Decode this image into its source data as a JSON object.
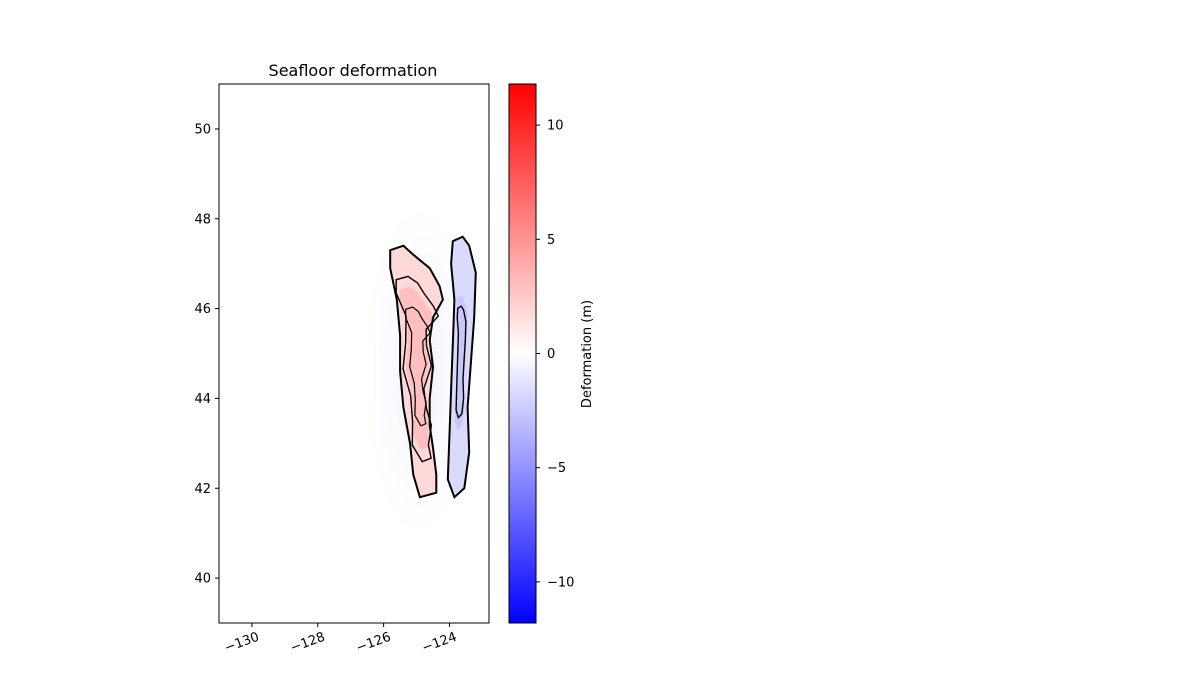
{
  "chart_data": {
    "type": "heatmap",
    "title": "Seafloor deformation",
    "xlabel": "",
    "ylabel": "",
    "xlim": [
      -131,
      -122.8
    ],
    "ylim": [
      39,
      51
    ],
    "x_ticks": [
      -130,
      -128,
      -126,
      -124
    ],
    "x_tick_labels": [
      "−130",
      "−128",
      "−126",
      "−124"
    ],
    "y_ticks": [
      40,
      42,
      44,
      46,
      48,
      50
    ],
    "y_tick_labels": [
      "40",
      "42",
      "44",
      "46",
      "48",
      "50"
    ],
    "colormap": "bwr",
    "colors": {
      "low": "#0000ff",
      "mid": "#ffffff",
      "high": "#ff0000",
      "contour": "#000000"
    },
    "grid": false,
    "colorbar": {
      "label": "Deformation (m)",
      "range": [
        -11.8,
        11.8
      ],
      "ticks": [
        -10,
        -5,
        0,
        5,
        10
      ],
      "tick_labels": [
        "−10",
        "−5",
        "0",
        "5",
        "10"
      ]
    },
    "features": [
      {
        "name": "uplift zone",
        "sign": "positive",
        "peak_value_m": 3.5,
        "outline": [
          [
            -125.8,
            47.3
          ],
          [
            -125.4,
            47.4
          ],
          [
            -125.1,
            47.2
          ],
          [
            -124.6,
            46.9
          ],
          [
            -124.3,
            46.5
          ],
          [
            -124.2,
            46.2
          ],
          [
            -124.5,
            45.8
          ],
          [
            -124.6,
            45.3
          ],
          [
            -124.5,
            44.7
          ],
          [
            -124.6,
            44.0
          ],
          [
            -124.6,
            43.4
          ],
          [
            -124.5,
            42.9
          ],
          [
            -124.4,
            42.3
          ],
          [
            -124.4,
            41.9
          ],
          [
            -124.9,
            41.8
          ],
          [
            -125.1,
            42.3
          ],
          [
            -125.2,
            43.0
          ],
          [
            -125.4,
            43.8
          ],
          [
            -125.5,
            44.6
          ],
          [
            -125.5,
            45.4
          ],
          [
            -125.6,
            46.2
          ],
          [
            -125.8,
            46.9
          ]
        ]
      },
      {
        "name": "subsidence zone",
        "sign": "negative",
        "peak_value_m": -2.5,
        "outline": [
          [
            -123.9,
            47.5
          ],
          [
            -123.6,
            47.6
          ],
          [
            -123.4,
            47.4
          ],
          [
            -123.2,
            46.8
          ],
          [
            -123.25,
            45.8
          ],
          [
            -123.35,
            44.8
          ],
          [
            -123.45,
            43.8
          ],
          [
            -123.4,
            42.8
          ],
          [
            -123.55,
            42.0
          ],
          [
            -123.85,
            41.8
          ],
          [
            -124.05,
            42.2
          ],
          [
            -124.0,
            43.2
          ],
          [
            -123.95,
            44.2
          ],
          [
            -123.9,
            45.2
          ],
          [
            -123.85,
            46.2
          ],
          [
            -123.95,
            47.0
          ]
        ]
      }
    ]
  }
}
